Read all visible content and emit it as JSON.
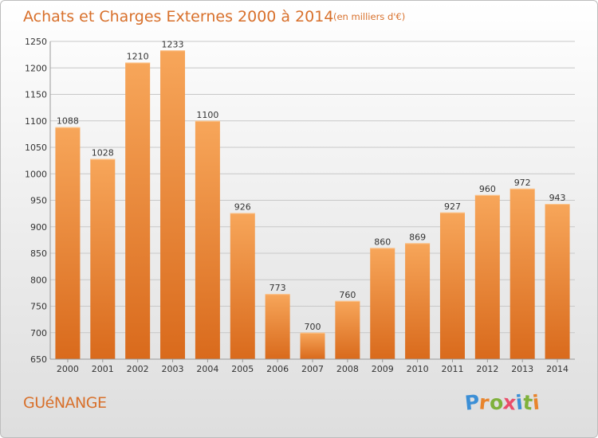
{
  "header": {
    "title": "Achats et Charges Externes 2000 à 2014",
    "unit": "(en milliers d'€)"
  },
  "footer": {
    "place": "GUéNANGE",
    "brand": "Proxiti",
    "brand_letters": [
      {
        "ch": "P",
        "color": "#3c8fd6"
      },
      {
        "ch": "r",
        "color": "#e8842c"
      },
      {
        "ch": "o",
        "color": "#7fb13c"
      },
      {
        "ch": "x",
        "color": "#e94d6a"
      },
      {
        "ch": "i",
        "color": "#3c8fd6"
      },
      {
        "ch": "t",
        "color": "#7fb13c"
      },
      {
        "ch": "i",
        "color": "#e8842c"
      }
    ]
  },
  "colors": {
    "bar_top": "#f7a65a",
    "bar_bottom": "#d96a1c",
    "title": "#d8702b",
    "grid": "#c8c8c8"
  },
  "chart_data": {
    "type": "bar",
    "title": "Achats et Charges Externes 2000 à 2014",
    "subtitle": "(en milliers d'€)",
    "categories": [
      "2000",
      "2001",
      "2002",
      "2003",
      "2004",
      "2005",
      "2006",
      "2007",
      "2008",
      "2009",
      "2010",
      "2011",
      "2012",
      "2013",
      "2014"
    ],
    "values": [
      1088,
      1028,
      1210,
      1233,
      1100,
      926,
      773,
      700,
      760,
      860,
      869,
      927,
      960,
      972,
      943
    ],
    "ylim": [
      650,
      1250
    ],
    "yticks": [
      650,
      700,
      750,
      800,
      850,
      900,
      950,
      1000,
      1050,
      1100,
      1150,
      1200,
      1250
    ],
    "grid": true,
    "legend": "none"
  }
}
